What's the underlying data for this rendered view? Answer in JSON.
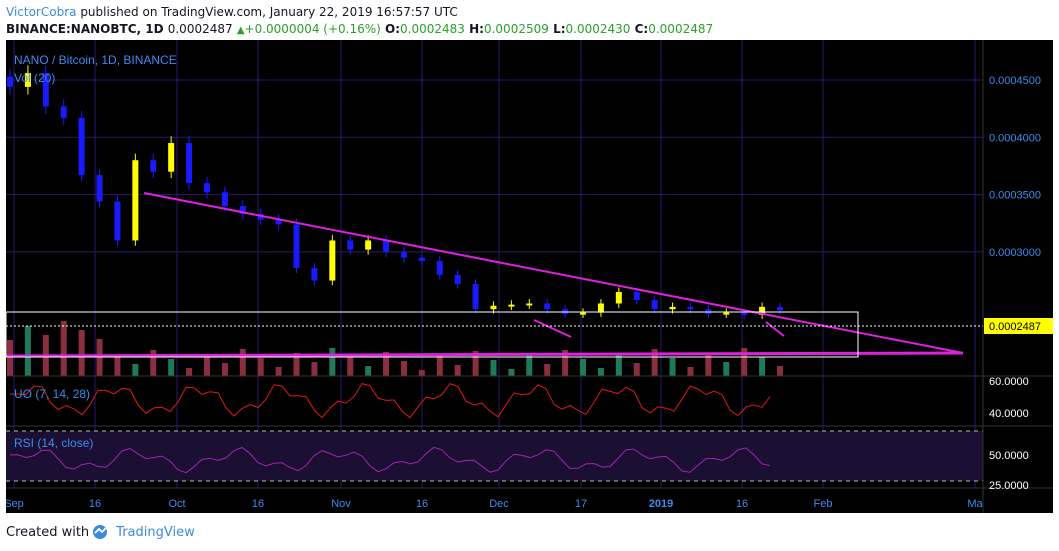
{
  "header": {
    "author": "VictorCobra",
    "published_text": "published on TradingView.com, January 22, 2019 16:57:57 UTC"
  },
  "ohlc": {
    "symbol": "BINANCE:NANOBTC, 1D",
    "close_value": "0.0002487",
    "change_arrow": "▲",
    "change": "+0.0000004 (+0.16%)",
    "o_label": "O:",
    "o_value": "0.0002483",
    "h_label": "H:",
    "h_value": "0.0002509",
    "l_label": "L:",
    "l_value": "0.0002430",
    "c_label": "C:",
    "c_value": "0.0002487"
  },
  "chart": {
    "title": "NANO / Bitcoin, 1D, BINANCE",
    "vol_label": "Vol (20)",
    "uo_label": "UO (7, 14, 28)",
    "rsi_label": "RSI (14, close)",
    "price_ticks": [
      "0.0004500",
      "0.0004000",
      "0.0003500",
      "0.0003000"
    ],
    "current_price": "0.0002487",
    "uo_ticks": [
      "60.0000",
      "40.0000"
    ],
    "rsi_ticks": [
      "50.0000",
      "25.0000"
    ],
    "x_ticks": [
      "Sep",
      "16",
      "Oct",
      "16",
      "Nov",
      "16",
      "Dec",
      "17",
      "2019",
      "16",
      "Feb",
      "Ma"
    ],
    "colors": {
      "up_candle": "#ffff00",
      "down_candle": "#1a1aff",
      "trendline": "#e020e0",
      "price_label_bg": "#ffff00",
      "background": "#000000",
      "grid": "#2a1a6a",
      "axis_text": "#3d8cf0"
    }
  },
  "chart_data": {
    "type": "candlestick",
    "title": "NANO / Bitcoin, 1D, BINANCE",
    "ylim": [
      0.00022,
      0.00048
    ],
    "series": [
      {
        "name": "NANOBTC",
        "values": [
          0.000444,
          0.000456,
          0.000427,
          0.000417,
          0.000367,
          0.000344,
          0.00031,
          0.00038,
          0.00037,
          0.000395,
          0.00036,
          0.000352,
          0.00034,
          0.000333,
          0.000328,
          0.000324,
          0.000286,
          0.000275,
          0.00031,
          0.000302,
          0.00031,
          0.0003,
          0.000295,
          0.000292,
          0.00028,
          0.000272,
          0.00025,
          0.000253,
          0.000254,
          0.000255,
          0.00025,
          0.000246,
          0.000247,
          0.000255,
          0.000265,
          0.000258,
          0.00025,
          0.000252,
          0.00025,
          0.000246,
          0.000247,
          0.000245,
          0.000252,
          0.000249
        ]
      }
    ],
    "annotations": [
      "descending trendline",
      "horizontal support line",
      "range box"
    ],
    "indicators": [
      "Vol (20)",
      "UO (7, 14, 28)",
      "RSI (14, close)"
    ]
  }
}
